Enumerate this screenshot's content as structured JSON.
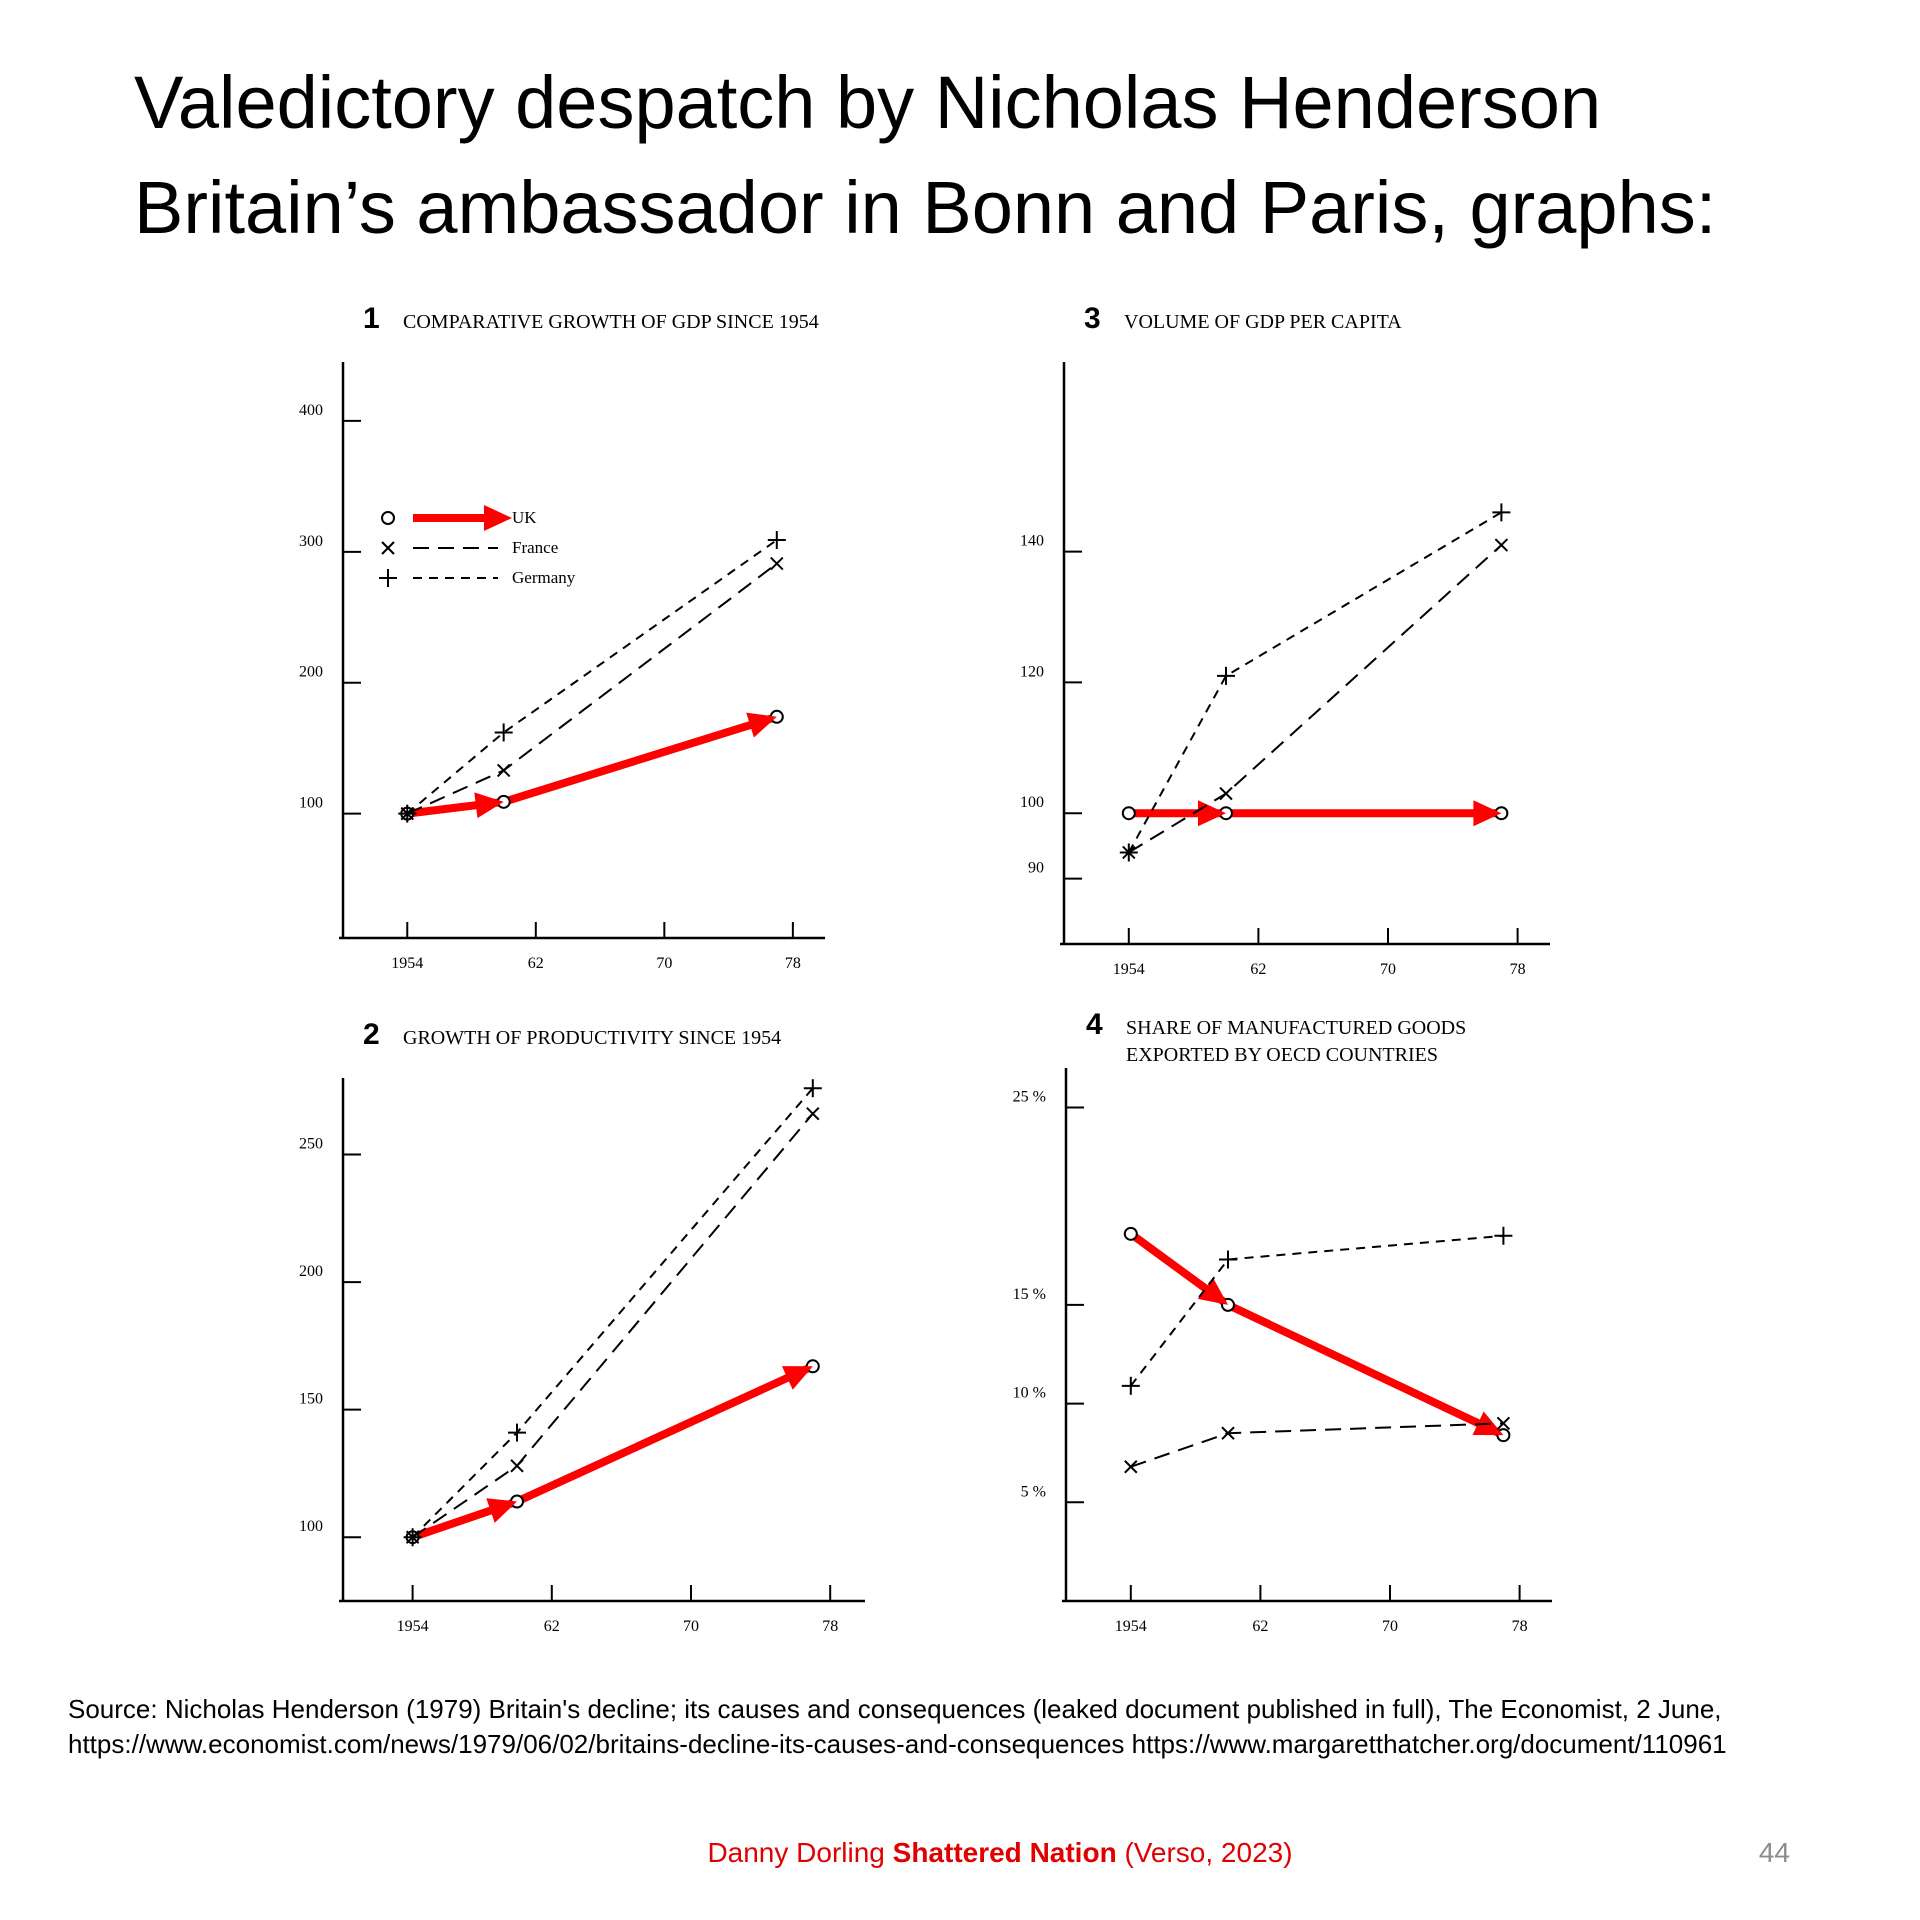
{
  "header": {
    "title": [
      "Valedictory despatch by Nicholas Henderson",
      "Britain’s ambassador in Bonn and Paris, graphs:"
    ]
  },
  "chart_data": [
    {
      "type": "line",
      "number": "1",
      "title": [
        "COMPARATIVE GROWTH OF GDP SINCE 1954"
      ],
      "legend": true,
      "x": [
        1954,
        1960,
        1977
      ],
      "xlim": [
        1950,
        1980
      ],
      "xticks": [
        1954,
        {
          "value": 1962,
          "label": "62"
        },
        {
          "value": 1970,
          "label": "70"
        },
        {
          "value": 1978,
          "label": "78"
        }
      ],
      "ylim": [
        5,
        445
      ],
      "yticks": [
        100,
        200,
        300,
        400
      ],
      "series": [
        {
          "name": "UK",
          "color": "#ff0000",
          "marker": "o",
          "values": [
            100,
            109,
            174
          ]
        },
        {
          "name": "France",
          "color": "#000000",
          "marker": "x",
          "values": [
            100,
            133,
            291
          ]
        },
        {
          "name": "Germany",
          "color": "#000000",
          "marker": "+",
          "values": [
            100,
            162,
            309
          ]
        }
      ]
    },
    {
      "type": "line",
      "number": "2",
      "title": [
        "GROWTH OF PRODUCTIVITY SINCE 1954"
      ],
      "legend": false,
      "x": [
        1954,
        1960,
        1977
      ],
      "xlim": [
        1950,
        1980
      ],
      "xticks": [
        1954,
        {
          "value": 1962,
          "label": "62"
        },
        {
          "value": 1970,
          "label": "70"
        },
        {
          "value": 1978,
          "label": "78"
        }
      ],
      "ylim": [
        75,
        280
      ],
      "yticks": [
        100,
        150,
        200,
        250
      ],
      "series": [
        {
          "color": "#ff0000",
          "marker": "o",
          "values": [
            100,
            114,
            167
          ]
        },
        {
          "color": "#000000",
          "marker": "x",
          "values": [
            100,
            128,
            266
          ]
        },
        {
          "color": "#000000",
          "marker": "+",
          "values": [
            100,
            141,
            276
          ]
        }
      ]
    },
    {
      "type": "line",
      "number": "3",
      "title": [
        "VOLUME OF GDP PER CAPITA"
      ],
      "legend": false,
      "x": [
        1954,
        1960,
        1977
      ],
      "xlim": [
        1950,
        1980
      ],
      "xticks": [
        1954,
        {
          "value": 1962,
          "label": "62"
        },
        {
          "value": 1970,
          "label": "70"
        },
        {
          "value": 1978,
          "label": "78"
        }
      ],
      "ylim": [
        80,
        169
      ],
      "yticks": [
        90,
        100,
        120,
        140
      ],
      "series": [
        {
          "color": "#ff0000",
          "marker": "o",
          "values": [
            100,
            100,
            100
          ]
        },
        {
          "color": "#000000",
          "marker": "x",
          "values": [
            94,
            103,
            141
          ]
        },
        {
          "color": "#000000",
          "marker": "+",
          "values": [
            94,
            121,
            146
          ]
        }
      ]
    },
    {
      "type": "line",
      "number": "4",
      "title": [
        "SHARE OF MANUFACTURED GOODS",
        "EXPORTED BY OECD COUNTRIES"
      ],
      "legend": false,
      "x": [
        1954,
        1960,
        1977
      ],
      "xlim": [
        1950,
        1980
      ],
      "xticks": [
        1954,
        {
          "value": 1962,
          "label": "62"
        },
        {
          "value": 1970,
          "label": "70"
        },
        {
          "value": 1978,
          "label": "78"
        }
      ],
      "ylim": [
        0,
        27
      ],
      "yticks": [
        {
          "value": 5,
          "label": "5 %"
        },
        {
          "value": 10,
          "label": "10 %"
        },
        {
          "value": 15,
          "label": "15 %"
        },
        {
          "value": 25,
          "label": "25 %"
        }
      ],
      "series": [
        {
          "color": "#ff0000",
          "marker": "o",
          "values": [
            18.6,
            15,
            8.4
          ]
        },
        {
          "color": "#000000",
          "marker": "x",
          "values": [
            6.8,
            8.5,
            9.0
          ]
        },
        {
          "color": "#000000",
          "marker": "+",
          "values": [
            10.9,
            17.3,
            18.5
          ]
        }
      ]
    }
  ],
  "source": [
    "Source: Nicholas Henderson (1979) Britain's decline; its causes and consequences (leaked document published in full), The Economist, 2 June,",
    "https://www.economist.com/news/1979/06/02/britains-decline-its-causes-and-consequences https://www.margaretthatcher.org/document/110961"
  ],
  "footer": {
    "author": "Danny Dorling",
    "book": "Shattered Nation",
    "publisher": "(Verso, 2023)"
  },
  "page_number": 44
}
